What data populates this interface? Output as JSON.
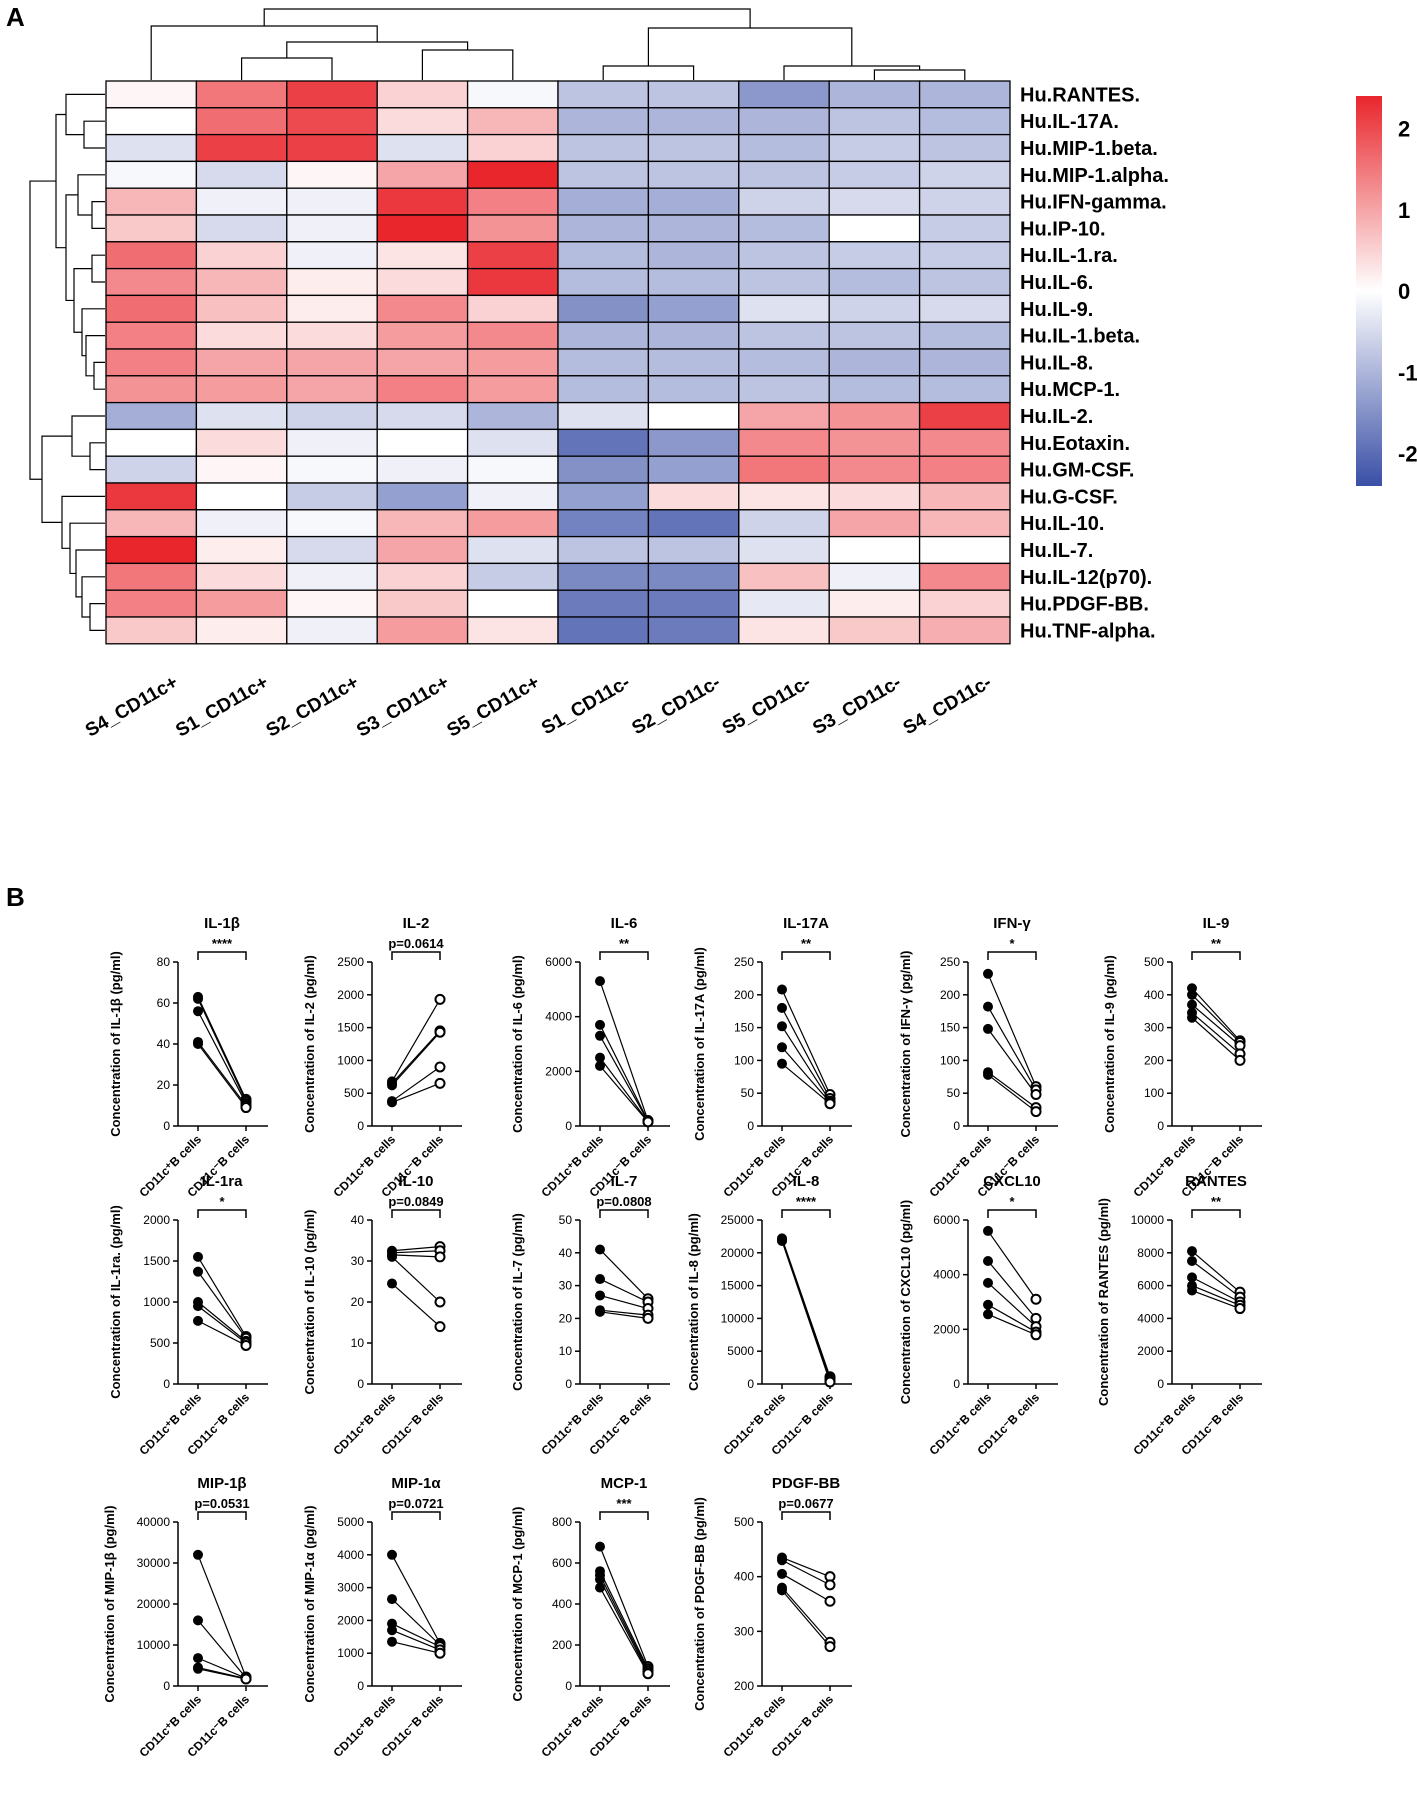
{
  "colors": {
    "low": "#3a4fa6",
    "mid": "#ffffff",
    "high": "#e8262c",
    "grid": "#000000"
  },
  "chart_data": [
    {
      "id": "A",
      "panel_label": "A",
      "type": "heatmap",
      "columns": [
        "S4_CD11c+",
        "S1_CD11c+",
        "S2_CD11c+",
        "S3_CD11c+",
        "S5_CD11c+",
        "S1_CD11c-",
        "S2_CD11c-",
        "S5_CD11c-",
        "S3_CD11c-",
        "S4_CD11c-"
      ],
      "rows": [
        "Hu.RANTES.",
        "Hu.IL-17A.",
        "Hu.MIP-1.beta.",
        "Hu.MIP-1.alpha.",
        "Hu.IFN-gamma.",
        "Hu.IP-10.",
        "Hu.IL-1.ra.",
        "Hu.IL-6.",
        "Hu.IL-9.",
        "Hu.IL-1.beta.",
        "Hu.IL-8.",
        "Hu.MCP-1.",
        "Hu.IL-2.",
        "Hu.Eotaxin.",
        "Hu.GM-CSF.",
        "Hu.G-CSF.",
        "Hu.IL-10.",
        "Hu.IL-7.",
        "Hu.IL-12(p70).",
        "Hu.PDGF-BB.",
        "Hu.TNF-alpha."
      ],
      "values": [
        [
          0.1,
          1.5,
          2.1,
          0.5,
          -0.1,
          -0.8,
          -0.8,
          -1.4,
          -1.0,
          -1.0
        ],
        [
          0.0,
          1.6,
          2.0,
          0.4,
          0.8,
          -1.0,
          -1.0,
          -1.0,
          -0.8,
          -0.9
        ],
        [
          -0.4,
          2.1,
          2.1,
          -0.4,
          0.5,
          -0.8,
          -0.8,
          -0.9,
          -0.7,
          -0.8
        ],
        [
          -0.1,
          -0.5,
          0.1,
          1.0,
          2.4,
          -0.8,
          -0.8,
          -0.8,
          -0.7,
          -0.6
        ],
        [
          0.8,
          -0.2,
          -0.2,
          2.2,
          1.4,
          -1.1,
          -1.1,
          -0.6,
          -0.5,
          -0.6
        ],
        [
          0.6,
          -0.5,
          -0.2,
          2.4,
          1.2,
          -1.0,
          -1.0,
          -0.9,
          0.0,
          -0.7
        ],
        [
          1.6,
          0.5,
          -0.2,
          0.3,
          2.1,
          -0.9,
          -1.0,
          -0.8,
          -0.7,
          -0.7
        ],
        [
          1.3,
          0.8,
          0.2,
          0.4,
          2.2,
          -0.9,
          -0.9,
          -0.8,
          -0.9,
          -0.8
        ],
        [
          1.6,
          0.7,
          0.2,
          1.3,
          0.5,
          -1.5,
          -1.3,
          -0.4,
          -0.6,
          -0.5
        ],
        [
          1.4,
          0.4,
          0.4,
          1.1,
          1.3,
          -1.0,
          -1.0,
          -0.8,
          -0.8,
          -0.9
        ],
        [
          1.4,
          1.0,
          1.0,
          1.0,
          1.1,
          -0.9,
          -0.9,
          -0.9,
          -1.0,
          -1.0
        ],
        [
          1.2,
          1.1,
          1.0,
          1.4,
          1.1,
          -0.9,
          -0.9,
          -0.8,
          -0.9,
          -0.9
        ],
        [
          -1.1,
          -0.4,
          -0.6,
          -0.5,
          -1.0,
          -0.4,
          0.0,
          1.0,
          1.2,
          2.1
        ],
        [
          0.0,
          0.4,
          -0.2,
          0.0,
          -0.4,
          -1.9,
          -1.4,
          1.3,
          1.2,
          1.3
        ],
        [
          -0.6,
          0.1,
          -0.1,
          -0.2,
          -0.1,
          -1.5,
          -1.3,
          1.5,
          1.3,
          1.4
        ],
        [
          2.2,
          0.0,
          -0.7,
          -1.3,
          -0.2,
          -1.3,
          0.4,
          0.3,
          0.4,
          0.8
        ],
        [
          0.8,
          -0.2,
          -0.1,
          0.8,
          1.1,
          -1.7,
          -1.9,
          -0.6,
          1.0,
          0.8
        ],
        [
          2.4,
          0.2,
          -0.5,
          1.0,
          -0.4,
          -0.8,
          -0.8,
          -0.4,
          0.0,
          0.0
        ],
        [
          1.5,
          0.4,
          -0.2,
          0.5,
          -0.7,
          -1.6,
          -1.6,
          0.7,
          -0.2,
          1.3
        ],
        [
          1.4,
          1.1,
          0.1,
          0.6,
          0.0,
          -1.8,
          -1.8,
          -0.3,
          0.2,
          0.5
        ],
        [
          0.6,
          0.2,
          -0.2,
          1.1,
          0.3,
          -1.9,
          -1.8,
          0.3,
          0.6,
          0.9
        ]
      ],
      "colorbar": {
        "min": -2.4,
        "max": 2.4,
        "ticks": [
          "2",
          "1",
          "0",
          "-1",
          "-2"
        ],
        "tick_values": [
          2,
          1,
          0,
          -1,
          -2
        ]
      }
    },
    {
      "id": "B",
      "panel_label": "B",
      "type": "scatter",
      "subtype": "paired dot plot",
      "x_categories": [
        "CD11c⁺B cells",
        "CD11c⁻B cells"
      ],
      "plots": [
        {
          "title": "IL-1β",
          "ylabel": "Concentration of IL-1β (pg/ml)",
          "ylim": [
            0,
            80
          ],
          "ticks": [
            "0",
            "20",
            "40",
            "60",
            "80"
          ],
          "tick_values": [
            0,
            20,
            40,
            60,
            80
          ],
          "sig": "****",
          "pos": [
            63,
            62,
            56,
            41,
            40
          ],
          "neg": [
            13,
            12,
            11,
            10,
            9
          ]
        },
        {
          "title": "IL-2",
          "ylabel": "Concentration of IL-2 (pg/ml)",
          "ylim": [
            0,
            2500
          ],
          "ticks": [
            "0",
            "500",
            "1000",
            "1500",
            "2000",
            "2500"
          ],
          "tick_values": [
            0,
            500,
            1000,
            1500,
            2000,
            2500
          ],
          "sig": "p=0.0614",
          "pos": [
            680,
            650,
            620,
            380,
            360
          ],
          "neg": [
            1930,
            1450,
            1430,
            900,
            650
          ]
        },
        {
          "title": "IL-6",
          "ylabel": "Concentration of IL-6 (pg/ml)",
          "ylim": [
            0,
            6000
          ],
          "ticks": [
            "0",
            "2000",
            "4000",
            "6000"
          ],
          "tick_values": [
            0,
            2000,
            4000,
            6000
          ],
          "sig": "**",
          "pos": [
            5300,
            3700,
            3300,
            2500,
            2200
          ],
          "neg": [
            200,
            180,
            170,
            160,
            150
          ]
        },
        {
          "title": "IL-17A",
          "ylabel": "Concentration of IL-17A (pg/ml)",
          "ylim": [
            0,
            250
          ],
          "ticks": [
            "0",
            "50",
            "100",
            "150",
            "200",
            "250"
          ],
          "tick_values": [
            0,
            50,
            100,
            150,
            200,
            250
          ],
          "sig": "**",
          "pos": [
            208,
            180,
            152,
            120,
            95
          ],
          "neg": [
            48,
            42,
            38,
            36,
            34
          ]
        },
        {
          "title": "IFN-γ",
          "ylabel": "Concentration of IFN-γ (pg/ml)",
          "ylim": [
            0,
            250
          ],
          "ticks": [
            "0",
            "50",
            "100",
            "150",
            "200",
            "250"
          ],
          "tick_values": [
            0,
            50,
            100,
            150,
            200,
            250
          ],
          "sig": "*",
          "pos": [
            232,
            182,
            148,
            82,
            78
          ],
          "neg": [
            60,
            55,
            48,
            28,
            22
          ]
        },
        {
          "title": "IL-9",
          "ylabel": "Concentration of IL-9 (pg/ml)",
          "ylim": [
            0,
            500
          ],
          "ticks": [
            "0",
            "100",
            "200",
            "300",
            "400",
            "500"
          ],
          "tick_values": [
            0,
            100,
            200,
            300,
            400,
            500
          ],
          "sig": "**",
          "pos": [
            420,
            400,
            370,
            345,
            330
          ],
          "neg": [
            260,
            255,
            245,
            220,
            200
          ]
        },
        {
          "title": "IL-1ra",
          "ylabel": "Concentration of IL-1ra. (pg/ml)",
          "ylim": [
            0,
            2000
          ],
          "ticks": [
            "0",
            "500",
            "1000",
            "1500",
            "2000"
          ],
          "tick_values": [
            0,
            500,
            1000,
            1500,
            2000
          ],
          "sig": "*",
          "pos": [
            1550,
            1370,
            1000,
            950,
            770
          ],
          "neg": [
            580,
            560,
            520,
            500,
            470
          ]
        },
        {
          "title": "IL-10",
          "ylabel": "Concentration of IL-10 (pg/ml)",
          "ylim": [
            0,
            40
          ],
          "ticks": [
            "0",
            "10",
            "20",
            "30",
            "40"
          ],
          "tick_values": [
            0,
            10,
            20,
            30,
            40
          ],
          "sig": "p=0.0849",
          "pos": [
            32.5,
            32,
            31.5,
            31,
            24.5
          ],
          "neg": [
            33.5,
            32.5,
            31,
            20,
            14
          ]
        },
        {
          "title": "IL-7",
          "ylabel": "Concentration of IL-7 (pg/ml)",
          "ylim": [
            0,
            50
          ],
          "ticks": [
            "0",
            "10",
            "20",
            "30",
            "40",
            "50"
          ],
          "tick_values": [
            0,
            10,
            20,
            30,
            40,
            50
          ],
          "sig": "p=0.0808",
          "pos": [
            41,
            32,
            27,
            22.5,
            22
          ],
          "neg": [
            26,
            25,
            23,
            21,
            20
          ]
        },
        {
          "title": "IL-8",
          "ylabel": "Concentration of IL-8 (pg/ml)",
          "ylim": [
            0,
            25000
          ],
          "ticks": [
            "0",
            "5000",
            "10000",
            "15000",
            "20000",
            "25000"
          ],
          "tick_values": [
            0,
            5000,
            10000,
            15000,
            20000,
            25000
          ],
          "sig": "****",
          "pos": [
            22200,
            22100,
            22000,
            21900,
            21800
          ],
          "neg": [
            1100,
            900,
            700,
            500,
            300
          ]
        },
        {
          "title": "CXCL10",
          "ylabel": "Concentration of CXCL10 (pg/ml)",
          "ylim": [
            0,
            6000
          ],
          "ticks": [
            "0",
            "2000",
            "4000",
            "6000"
          ],
          "tick_values": [
            0,
            2000,
            4000,
            6000
          ],
          "sig": "*",
          "pos": [
            5600,
            4500,
            3700,
            2900,
            2550
          ],
          "neg": [
            3100,
            2400,
            2100,
            1900,
            1800
          ]
        },
        {
          "title": "RANTES",
          "ylabel": "Concentration of RANTES (pg/ml)",
          "ylim": [
            0,
            10000
          ],
          "ticks": [
            "0",
            "2000",
            "4000",
            "6000",
            "8000",
            "10000"
          ],
          "tick_values": [
            0,
            2000,
            4000,
            6000,
            8000,
            10000
          ],
          "sig": "**",
          "pos": [
            8100,
            7500,
            6500,
            6000,
            5700
          ],
          "neg": [
            5600,
            5300,
            5000,
            4800,
            4600
          ]
        },
        {
          "title": "MIP-1β",
          "ylabel": "Concentration of MIP-1β (pg/ml)",
          "ylim": [
            0,
            40000
          ],
          "ticks": [
            "0",
            "10000",
            "20000",
            "30000",
            "40000"
          ],
          "tick_values": [
            0,
            10000,
            20000,
            30000,
            40000
          ],
          "sig": "p=0.0531",
          "pos": [
            32000,
            16000,
            6800,
            4500,
            4200
          ],
          "neg": [
            2200,
            2000,
            1900,
            1800,
            1700
          ]
        },
        {
          "title": "MIP-1α",
          "ylabel": "Concentration of MIP-1α (pg/ml)",
          "ylim": [
            0,
            5000
          ],
          "ticks": [
            "0",
            "1000",
            "2000",
            "3000",
            "4000",
            "5000"
          ],
          "tick_values": [
            0,
            1000,
            2000,
            3000,
            4000,
            5000
          ],
          "sig": "p=0.0721",
          "pos": [
            4000,
            2650,
            1900,
            1700,
            1350
          ],
          "neg": [
            1300,
            1250,
            1200,
            1100,
            1000
          ]
        },
        {
          "title": "MCP-1",
          "ylabel": "Concentration of MCP-1 (pg/ml)",
          "ylim": [
            0,
            800
          ],
          "ticks": [
            "0",
            "200",
            "400",
            "600",
            "800"
          ],
          "tick_values": [
            0,
            200,
            400,
            600,
            800
          ],
          "sig": "***",
          "pos": [
            680,
            560,
            540,
            520,
            480
          ],
          "neg": [
            95,
            85,
            75,
            65,
            60
          ]
        },
        {
          "title": "PDGF-BB",
          "ylabel": "Concentration of PDGF-BB (pg/ml)",
          "ylim": [
            200,
            500
          ],
          "ticks": [
            "200",
            "300",
            "400",
            "500"
          ],
          "tick_values": [
            200,
            300,
            400,
            500
          ],
          "sig": "p=0.0677",
          "pos": [
            435,
            430,
            405,
            380,
            375
          ],
          "neg": [
            400,
            385,
            355,
            280,
            272
          ]
        }
      ]
    }
  ]
}
